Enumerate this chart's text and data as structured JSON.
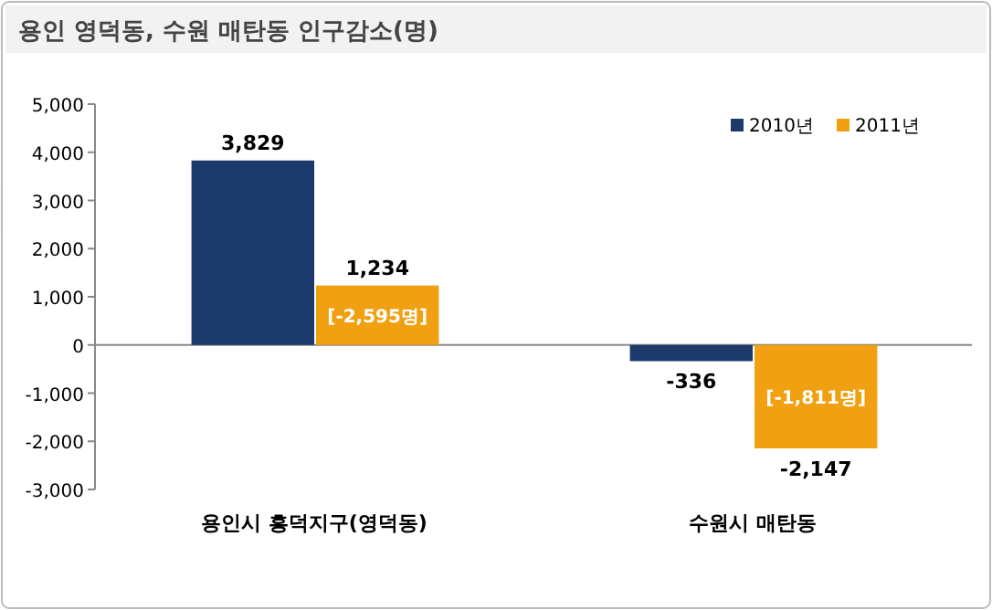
{
  "chart_data": {
    "type": "bar",
    "title": "용인 영덕동, 수원 매탄동 인구감소(명)",
    "categories": [
      "용인시 흥덕지구(영덕동)",
      "수원시 매탄동"
    ],
    "series": [
      {
        "name": "2010년",
        "color": "#1b3a6b",
        "values": [
          3829,
          -336
        ],
        "value_labels": [
          "3,829",
          "-336"
        ]
      },
      {
        "name": "2011년",
        "color": "#f0a010",
        "values": [
          1234,
          -2147
        ],
        "value_labels": [
          "1,234",
          "-2,147"
        ]
      }
    ],
    "ylim": [
      -3000,
      5000
    ],
    "yticks": [
      {
        "value": -3000,
        "label": "-3,000"
      },
      {
        "value": -2000,
        "label": "-2,000"
      },
      {
        "value": -1000,
        "label": "-1,000"
      },
      0,
      {
        "value": 1000,
        "label": "1,000"
      },
      {
        "value": 2000,
        "label": "2,000"
      },
      {
        "value": 3000,
        "label": "3,000"
      },
      {
        "value": 4000,
        "label": "4,000"
      },
      {
        "value": 5000,
        "label": "5,000"
      }
    ],
    "legend": "top right",
    "annotations": [
      "[-2,595명]",
      "[-1,811명]"
    ]
  }
}
